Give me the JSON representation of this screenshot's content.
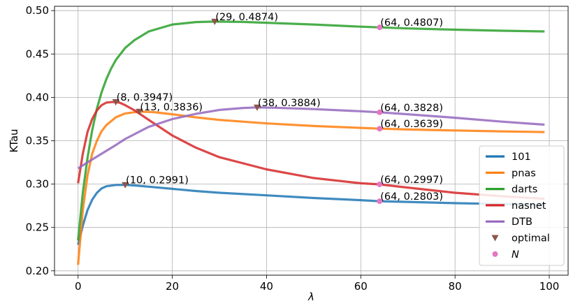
{
  "chart_data": {
    "type": "line",
    "xlabel": "λ",
    "ylabel": "KTau",
    "xlim": [
      -5,
      104
    ],
    "ylim": [
      0.195,
      0.505
    ],
    "xticks": [
      0,
      20,
      40,
      60,
      80,
      100
    ],
    "yticks": [
      0.2,
      0.25,
      0.3,
      0.35,
      0.4,
      0.45,
      0.5
    ],
    "xtick_labels": [
      "0",
      "20",
      "40",
      "60",
      "80",
      "100"
    ],
    "ytick_labels": [
      "0.20",
      "0.25",
      "0.30",
      "0.35",
      "0.40",
      "0.45",
      "0.50"
    ],
    "grid": true,
    "legend_position": "lower-right",
    "series": [
      {
        "name": "101",
        "color": "#1f77b4",
        "x": [
          0,
          1,
          2,
          3,
          4,
          5,
          6,
          8,
          10,
          12,
          15,
          20,
          25,
          30,
          40,
          50,
          60,
          64,
          70,
          80,
          90,
          99
        ],
        "y": [
          0.23,
          0.252,
          0.27,
          0.282,
          0.29,
          0.295,
          0.2975,
          0.299,
          0.2991,
          0.2985,
          0.297,
          0.2945,
          0.292,
          0.29,
          0.287,
          0.284,
          0.2815,
          0.2803,
          0.2795,
          0.278,
          0.277,
          0.276
        ]
      },
      {
        "name": "pnas",
        "color": "#ff7f0e",
        "x": [
          0,
          1,
          2,
          3,
          4,
          5,
          6,
          8,
          10,
          13,
          16,
          20,
          25,
          30,
          40,
          50,
          60,
          64,
          70,
          80,
          90,
          99
        ],
        "y": [
          0.207,
          0.27,
          0.31,
          0.335,
          0.35,
          0.361,
          0.368,
          0.377,
          0.3815,
          0.3836,
          0.383,
          0.3805,
          0.377,
          0.374,
          0.37,
          0.367,
          0.3648,
          0.3639,
          0.363,
          0.3618,
          0.3608,
          0.36
        ]
      },
      {
        "name": "darts",
        "color": "#2ca02c",
        "x": [
          0,
          1,
          2,
          3,
          4,
          5,
          6,
          7,
          8,
          10,
          12,
          15,
          20,
          25,
          29,
          35,
          40,
          50,
          60,
          64,
          70,
          80,
          90,
          99
        ],
        "y": [
          0.235,
          0.29,
          0.33,
          0.362,
          0.387,
          0.406,
          0.421,
          0.433,
          0.443,
          0.457,
          0.466,
          0.476,
          0.484,
          0.4868,
          0.4874,
          0.487,
          0.486,
          0.484,
          0.4815,
          0.4807,
          0.4795,
          0.478,
          0.4768,
          0.476
        ]
      },
      {
        "name": "nasnet",
        "color": "#d62728",
        "x": [
          0,
          1,
          2,
          3,
          4,
          5,
          6,
          7,
          8,
          9,
          10,
          12,
          15,
          20,
          25,
          30,
          40,
          50,
          60,
          64,
          70,
          80,
          90,
          99
        ],
        "y": [
          0.301,
          0.335,
          0.36,
          0.375,
          0.385,
          0.391,
          0.394,
          0.3945,
          0.3947,
          0.3935,
          0.391,
          0.385,
          0.374,
          0.356,
          0.342,
          0.331,
          0.317,
          0.307,
          0.301,
          0.2997,
          0.296,
          0.29,
          0.286,
          0.283
        ]
      },
      {
        "name": "DTB",
        "color": "#9467bd",
        "x": [
          0,
          2,
          5,
          8,
          10,
          15,
          20,
          25,
          30,
          35,
          38,
          42,
          50,
          60,
          64,
          70,
          80,
          90,
          99
        ],
        "y": [
          0.318,
          0.325,
          0.335,
          0.345,
          0.352,
          0.366,
          0.375,
          0.381,
          0.3855,
          0.3878,
          0.3884,
          0.388,
          0.3865,
          0.384,
          0.3828,
          0.3805,
          0.3765,
          0.372,
          0.3685
        ]
      }
    ],
    "optimal_points": {
      "name": "optimal",
      "color": "#8c564b",
      "points": [
        {
          "x": 10,
          "y": 0.2991,
          "label": "(10, 0.2991)"
        },
        {
          "x": 13,
          "y": 0.3836,
          "label": "(13, 0.3836)"
        },
        {
          "x": 29,
          "y": 0.4874,
          "label": "(29, 0.4874)"
        },
        {
          "x": 8,
          "y": 0.3947,
          "label": "(8, 0.3947)"
        },
        {
          "x": 38,
          "y": 0.3884,
          "label": "(38, 0.3884)"
        }
      ]
    },
    "n_points": {
      "name": "N",
      "color": "#e377c2",
      "points": [
        {
          "x": 64,
          "y": 0.2803,
          "label": "(64, 0.2803)"
        },
        {
          "x": 64,
          "y": 0.3639,
          "label": "(64, 0.3639)"
        },
        {
          "x": 64,
          "y": 0.4807,
          "label": "(64, 0.4807)"
        },
        {
          "x": 64,
          "y": 0.2997,
          "label": "(64, 0.2997)"
        },
        {
          "x": 64,
          "y": 0.3828,
          "label": "(64, 0.3828)"
        }
      ]
    }
  }
}
